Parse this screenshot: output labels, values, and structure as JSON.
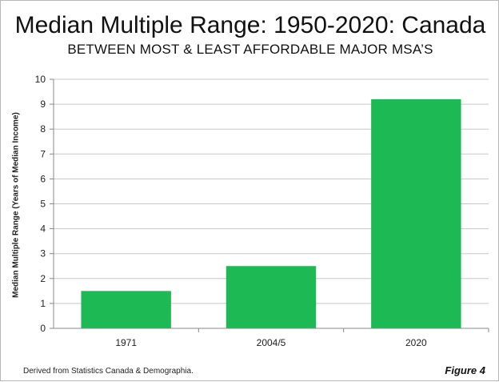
{
  "title": "Median Multiple Range: 1950-2020: Canada",
  "subtitle": "BETWEEN MOST & LEAST AFFORDABLE MAJOR MSA’S",
  "source_note": "Derived from Statistics Canada & Demographia.",
  "figure_label": "Figure 4",
  "colors": {
    "bar": "#1db954",
    "grid": "#c8c8c8",
    "axis": "#888888"
  },
  "chart_data": {
    "type": "bar",
    "title": "Median Multiple Range: 1950-2020: Canada",
    "subtitle": "BETWEEN MOST & LEAST AFFORDABLE MAJOR MSA’S",
    "xlabel": "",
    "ylabel": "Median Multiple Range (Years of Median Income)",
    "categories": [
      "1971",
      "2004/5",
      "2020"
    ],
    "values": [
      1.5,
      2.5,
      9.2
    ],
    "ylim": [
      0,
      10
    ],
    "yticks": [
      0,
      1,
      2,
      3,
      4,
      5,
      6,
      7,
      8,
      9,
      10
    ],
    "grid": true,
    "legend": "none"
  }
}
